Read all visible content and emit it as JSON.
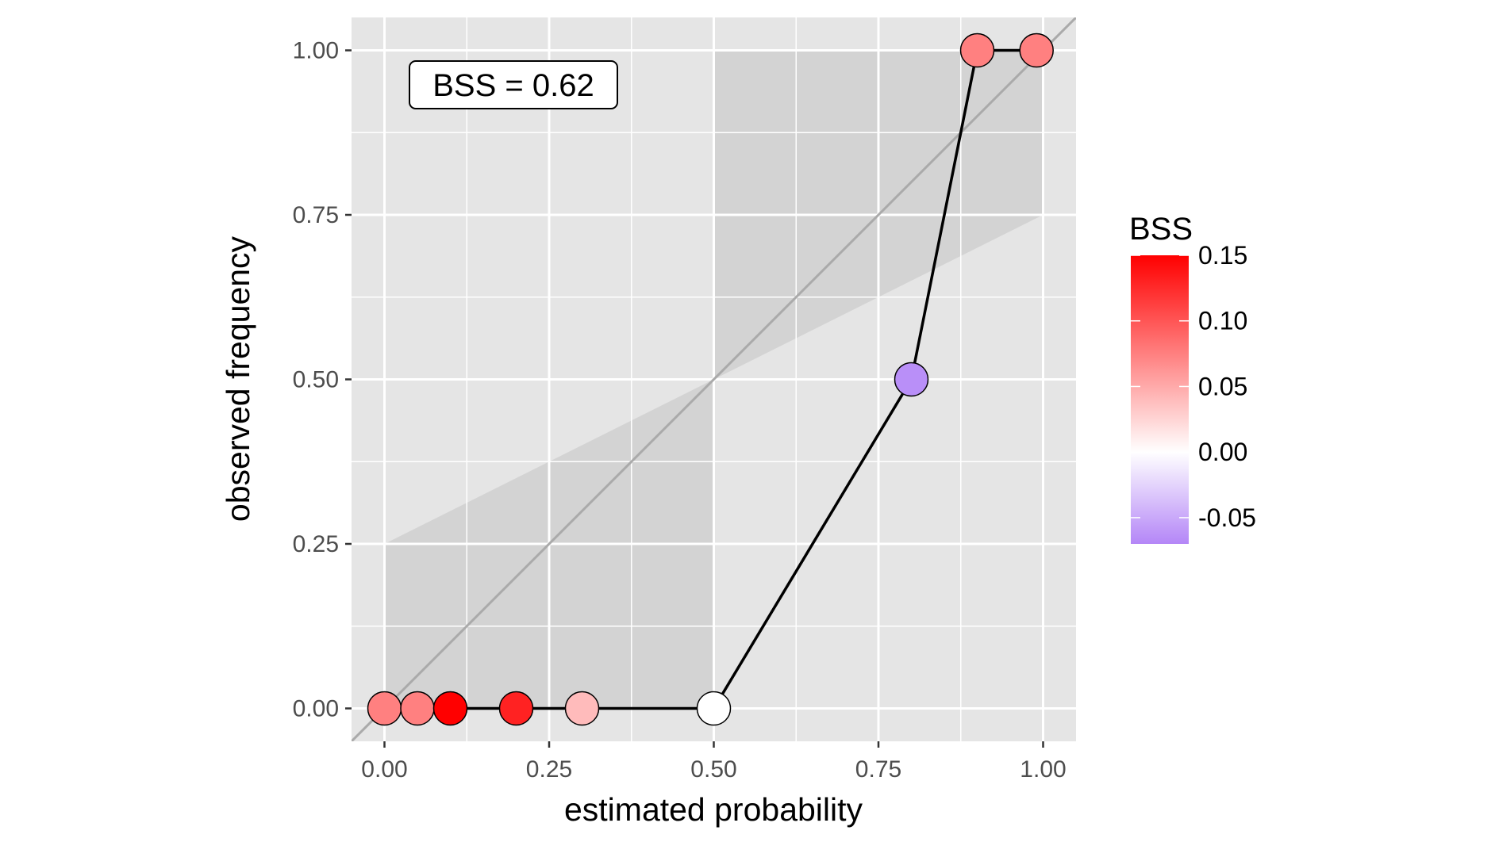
{
  "chart_data": {
    "type": "scatter",
    "xlabel": "estimated probability",
    "ylabel": "observed frequency",
    "xlim": [
      -0.05,
      1.05
    ],
    "ylim": [
      -0.05,
      1.05
    ],
    "x_ticks": [
      "0.00",
      "0.25",
      "0.50",
      "0.75",
      "1.00"
    ],
    "y_ticks": [
      "0.00",
      "0.25",
      "0.50",
      "0.75",
      "1.00"
    ],
    "grid": true,
    "annotation": "BSS = 0.62",
    "reference_line": "y = x",
    "skill_region": "shaded",
    "points": [
      {
        "x": 0.0,
        "y": 0.0,
        "bss": 0.075
      },
      {
        "x": 0.05,
        "y": 0.0,
        "bss": 0.075
      },
      {
        "x": 0.1,
        "y": 0.0,
        "bss": 0.155
      },
      {
        "x": 0.2,
        "y": 0.0,
        "bss": 0.13
      },
      {
        "x": 0.3,
        "y": 0.0,
        "bss": 0.04
      },
      {
        "x": 0.5,
        "y": 0.0,
        "bss": 0.0
      },
      {
        "x": 0.8,
        "y": 0.5,
        "bss": -0.065
      },
      {
        "x": 0.9,
        "y": 1.0,
        "bss": 0.075
      },
      {
        "x": 0.99,
        "y": 1.0,
        "bss": 0.075
      }
    ],
    "legend": {
      "title": "BSS",
      "position": "right",
      "labels": [
        "0.15",
        "0.10",
        "0.05",
        "0.00",
        "-0.05"
      ],
      "values": [
        0.15,
        0.1,
        0.05,
        0.0,
        -0.05
      ],
      "min": -0.07,
      "max": 0.15,
      "low_color": "#b486f7",
      "mid_color": "#ffffff",
      "high_color": "#ff0000"
    },
    "colors": {
      "panel_background": "#e5e5e5",
      "grid_line": "#ffffff",
      "shaded_region": "#d3d3d3",
      "reference_line": "#aaaaaa",
      "connecting_line": "#000000"
    }
  }
}
